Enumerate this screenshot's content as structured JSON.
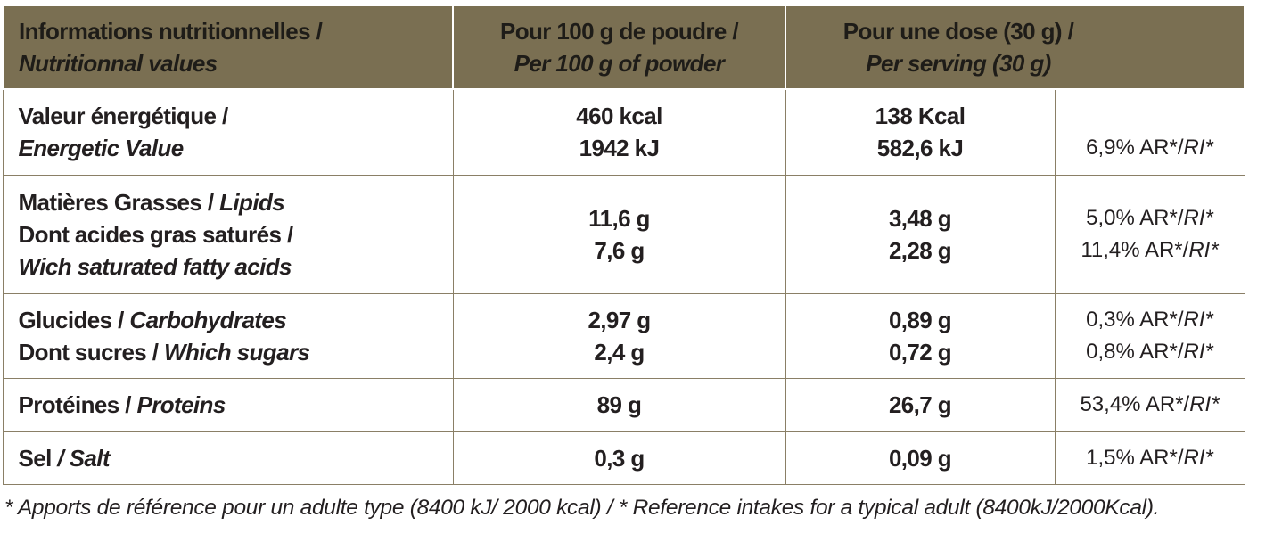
{
  "header": {
    "col1_fr": "Informations nutritionnelles /",
    "col1_en": "Nutritionnal values",
    "col2_fr": "Pour 100 g de poudre /",
    "col2_en": "Per 100 g of powder",
    "col3_fr": "Pour une dose (30 g) /",
    "col3_en": "Per serving (30 g)"
  },
  "rows": {
    "energy": {
      "label_fr": "Valeur énergétique /",
      "label_en": "Energetic Value",
      "per100_kcal": "460 kcal",
      "per100_kj": "1942 kJ",
      "serving_kcal": "138 Kcal",
      "serving_kj": "582,6 kJ",
      "ri": "6,9% AR*/",
      "ri_suffix": "RI*"
    },
    "fat": {
      "label_fr": "Matières Grasses / ",
      "label_en": "Lipids",
      "sub_label_fr": "Dont acides gras saturés /",
      "sub_label_en": "Wich saturated fatty acids",
      "per100": "11,6 g",
      "per100_sub": "7,6 g",
      "serving": "3,48 g",
      "serving_sub": "2,28 g",
      "ri": "5,0% AR*/",
      "ri_sub": "11,4% AR*/",
      "ri_suffix": "RI*"
    },
    "carbs": {
      "label_fr": "Glucides / ",
      "label_en": "Carbohydrates",
      "sub_label_fr": "Dont sucres / ",
      "sub_label_en": "Which sugars",
      "per100": "2,97 g",
      "per100_sub": "2,4 g",
      "serving": "0,89 g",
      "serving_sub": "0,72 g",
      "ri": "0,3% AR*/",
      "ri_sub": "0,8% AR*/",
      "ri_suffix": "RI*"
    },
    "protein": {
      "label_fr": "Protéines / ",
      "label_en": "Proteins",
      "per100": "89 g",
      "serving": "26,7 g",
      "ri": "53,4% AR*/",
      "ri_suffix": "RI*"
    },
    "salt": {
      "label_fr": "Sel ",
      "label_en": "/ Salt",
      "per100": "0,3 g",
      "serving": "0,09 g",
      "ri": "1,5% AR*/",
      "ri_suffix": "RI*"
    }
  },
  "footnote": "* Apports de référence pour un adulte type (8400 kJ/ 2000 kcal)  / * Reference intakes for a typical adult (8400kJ/2000Kcal).",
  "colors": {
    "header_bg": "#7a6f52",
    "border": "#8a7f66"
  }
}
